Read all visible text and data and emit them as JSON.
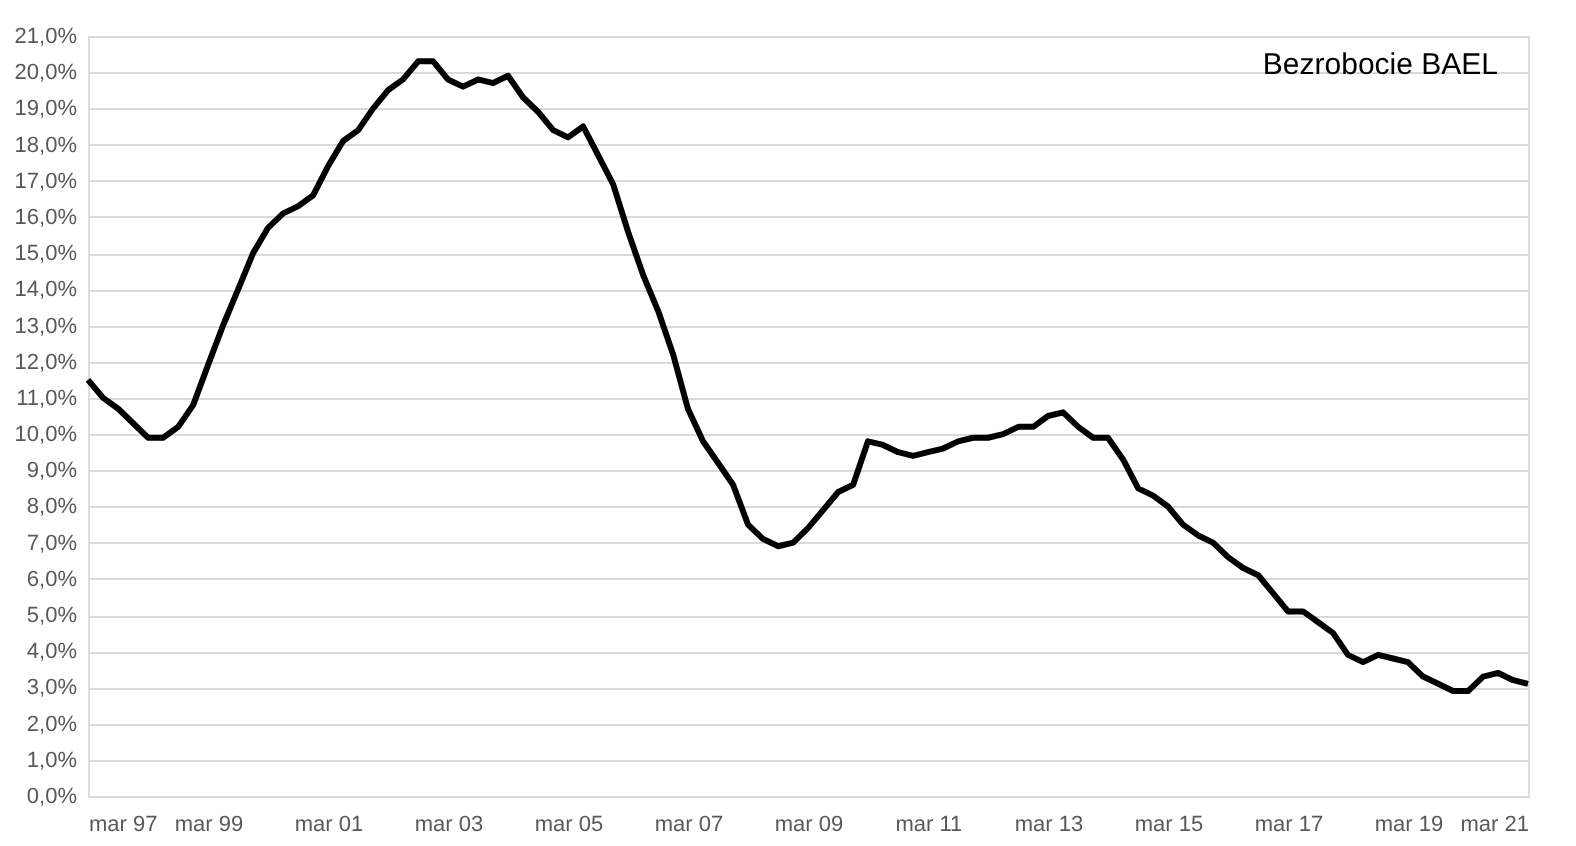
{
  "chart_data": {
    "type": "line",
    "title": "Bezrobocie BAEL",
    "x": [
      "1997-03",
      "1997-06",
      "1997-09",
      "1997-12",
      "1998-03",
      "1998-06",
      "1998-09",
      "1998-12",
      "1999-03",
      "1999-06",
      "1999-09",
      "1999-12",
      "2000-03",
      "2000-06",
      "2000-09",
      "2000-12",
      "2001-03",
      "2001-06",
      "2001-09",
      "2001-12",
      "2002-03",
      "2002-06",
      "2002-09",
      "2002-12",
      "2003-03",
      "2003-06",
      "2003-09",
      "2003-12",
      "2004-03",
      "2004-06",
      "2004-09",
      "2004-12",
      "2005-03",
      "2005-06",
      "2005-09",
      "2005-12",
      "2006-03",
      "2006-06",
      "2006-09",
      "2006-12",
      "2007-03",
      "2007-06",
      "2007-09",
      "2007-12",
      "2008-03",
      "2008-06",
      "2008-09",
      "2008-12",
      "2009-03",
      "2009-06",
      "2009-09",
      "2009-12",
      "2010-03",
      "2010-06",
      "2010-09",
      "2010-12",
      "2011-03",
      "2011-06",
      "2011-09",
      "2011-12",
      "2012-03",
      "2012-06",
      "2012-09",
      "2012-12",
      "2013-03",
      "2013-06",
      "2013-09",
      "2013-12",
      "2014-03",
      "2014-06",
      "2014-09",
      "2014-12",
      "2015-03",
      "2015-06",
      "2015-09",
      "2015-12",
      "2016-03",
      "2016-06",
      "2016-09",
      "2016-12",
      "2017-03",
      "2017-06",
      "2017-09",
      "2017-12",
      "2018-03",
      "2018-06",
      "2018-09",
      "2018-12",
      "2019-03",
      "2019-06",
      "2019-09",
      "2019-12",
      "2020-03",
      "2020-06",
      "2020-09",
      "2020-12",
      "2021-03"
    ],
    "series": [
      {
        "color": "#000000",
        "values": [
          11.5,
          11.0,
          10.7,
          10.3,
          9.9,
          9.9,
          10.2,
          10.8,
          11.9,
          13.0,
          14.0,
          15.0,
          15.7,
          16.1,
          16.3,
          16.6,
          17.4,
          18.1,
          18.4,
          19.0,
          19.5,
          19.8,
          20.3,
          20.3,
          19.8,
          19.6,
          19.8,
          19.7,
          19.9,
          19.3,
          18.9,
          18.4,
          18.2,
          18.5,
          17.7,
          16.9,
          15.6,
          14.4,
          13.4,
          12.2,
          10.7,
          9.8,
          9.2,
          8.6,
          7.5,
          7.1,
          6.9,
          7.0,
          7.4,
          7.9,
          8.4,
          8.6,
          9.8,
          9.7,
          9.5,
          9.4,
          9.5,
          9.6,
          9.8,
          9.9,
          9.9,
          10.0,
          10.2,
          10.2,
          10.5,
          10.6,
          10.2,
          9.9,
          9.9,
          9.3,
          8.5,
          8.3,
          8.0,
          7.5,
          7.2,
          7.0,
          6.6,
          6.3,
          6.1,
          5.6,
          5.1,
          5.1,
          4.8,
          4.5,
          3.9,
          3.7,
          3.9,
          3.8,
          3.7,
          3.3,
          3.1,
          2.9,
          2.9,
          3.3,
          3.4,
          3.2,
          3.1
        ]
      }
    ],
    "xlim": [
      "1997-03",
      "2021-03"
    ],
    "xticks": [
      {
        "value": "1997-03",
        "label": "mar 97"
      },
      {
        "value": "1999-03",
        "label": "mar 99"
      },
      {
        "value": "2001-03",
        "label": "mar 01"
      },
      {
        "value": "2003-03",
        "label": "mar 03"
      },
      {
        "value": "2005-03",
        "label": "mar 05"
      },
      {
        "value": "2007-03",
        "label": "mar 07"
      },
      {
        "value": "2009-03",
        "label": "mar 09"
      },
      {
        "value": "2011-03",
        "label": "mar 11"
      },
      {
        "value": "2013-03",
        "label": "mar 13"
      },
      {
        "value": "2015-03",
        "label": "mar 15"
      },
      {
        "value": "2017-03",
        "label": "mar 17"
      },
      {
        "value": "2019-03",
        "label": "mar 19"
      },
      {
        "value": "2021-03",
        "label": "mar 21"
      }
    ],
    "ylim": [
      0,
      21
    ],
    "yticks": [
      {
        "value": 0,
        "label": "0,0%"
      },
      {
        "value": 1,
        "label": "1,0%"
      },
      {
        "value": 2,
        "label": "2,0%"
      },
      {
        "value": 3,
        "label": "3,0%"
      },
      {
        "value": 4,
        "label": "4,0%"
      },
      {
        "value": 5,
        "label": "5,0%"
      },
      {
        "value": 6,
        "label": "6,0%"
      },
      {
        "value": 7,
        "label": "7,0%"
      },
      {
        "value": 8,
        "label": "8,0%"
      },
      {
        "value": 9,
        "label": "9,0%"
      },
      {
        "value": 10,
        "label": "10,0%"
      },
      {
        "value": 11,
        "label": "11,0%"
      },
      {
        "value": 12,
        "label": "12,0%"
      },
      {
        "value": 13,
        "label": "13,0%"
      },
      {
        "value": 14,
        "label": "14,0%"
      },
      {
        "value": 15,
        "label": "15,0%"
      },
      {
        "value": 16,
        "label": "16,0%"
      },
      {
        "value": 17,
        "label": "17,0%"
      },
      {
        "value": 18,
        "label": "18,0%"
      },
      {
        "value": 19,
        "label": "19,0%"
      },
      {
        "value": 20,
        "label": "20,0%"
      },
      {
        "value": 21,
        "label": "21,0%"
      }
    ],
    "grid": "y",
    "marker": "none",
    "line_style": "solid"
  }
}
